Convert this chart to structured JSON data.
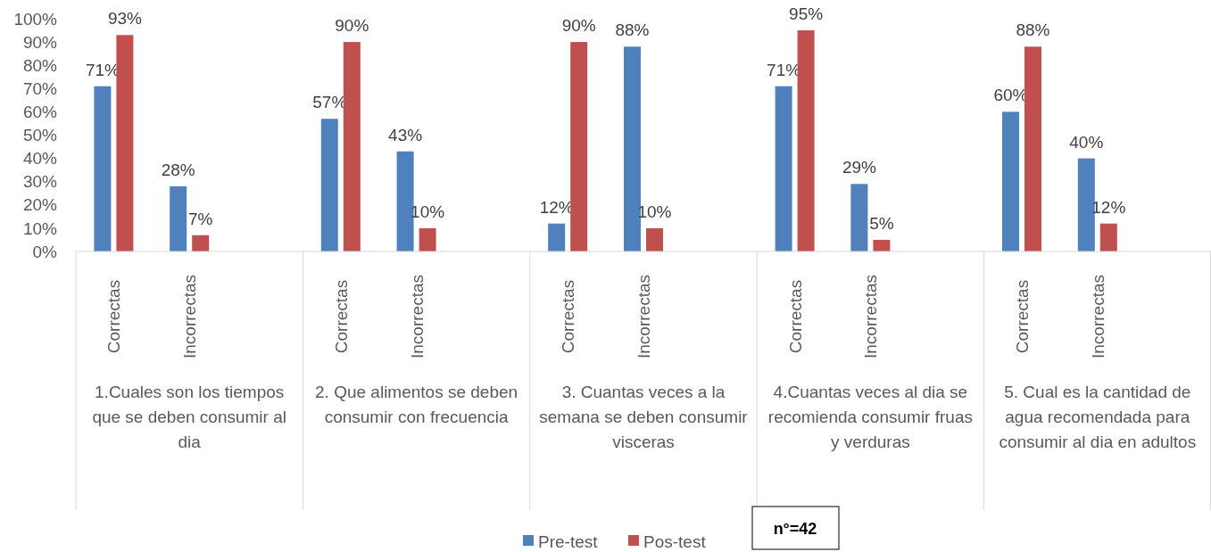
{
  "chart_data": {
    "type": "bar",
    "categories": [
      "Correctas",
      "Incorrectas",
      null,
      "Correctas",
      "Incorrectas",
      null,
      "Correctas",
      "Incorrectas",
      null,
      "Correctas",
      "Incorrectas",
      null,
      "Correctas",
      "Incorrectas",
      null
    ],
    "series": [
      {
        "name": "Pre-test",
        "color": "#4f81bd",
        "values": [
          71,
          28,
          null,
          57,
          43,
          null,
          12,
          88,
          null,
          71,
          29,
          null,
          60,
          40,
          null
        ],
        "value_labels": [
          "71%",
          "28%",
          null,
          "57%",
          "43%",
          null,
          "12%",
          "88%",
          null,
          "71%",
          "29%",
          null,
          "60%",
          "40%",
          null
        ]
      },
      {
        "name": "Pos-test",
        "color": "#c0504d",
        "values": [
          93,
          7,
          null,
          90,
          10,
          null,
          90,
          10,
          null,
          95,
          5,
          null,
          88,
          12,
          null
        ],
        "value_labels": [
          "93%",
          "7%",
          null,
          "90%",
          "10%",
          null,
          "90%",
          "10%",
          null,
          "95%",
          "5%",
          null,
          "88%",
          "12%",
          null
        ]
      }
    ],
    "ylim": [
      0,
      100
    ],
    "yticks": [
      {
        "value": 0,
        "label": "0%"
      },
      {
        "value": 10,
        "label": "10%"
      },
      {
        "value": 20,
        "label": "20%"
      },
      {
        "value": 30,
        "label": "30%"
      },
      {
        "value": 40,
        "label": "40%"
      },
      {
        "value": 50,
        "label": "50%"
      },
      {
        "value": 60,
        "label": "60%"
      },
      {
        "value": 70,
        "label": "70%"
      },
      {
        "value": 80,
        "label": "80%"
      },
      {
        "value": 90,
        "label": "90%"
      },
      {
        "value": 100,
        "label": "100%"
      }
    ],
    "annotations": [
      "1.Cuales son los tiempos que se deben consumir al dia",
      "2. Que alimentos se deben consumir con frecuencia",
      "3. Cuantas veces a la semana se deben consumir visceras",
      "4.Cuantas veces al dia se recomienda consumir fruas y verduras",
      "5. Cual es la cantidad de agua recomendada para consumir al dia en adultos",
      "n°=42"
    ],
    "legend": "bottom",
    "grid": false
  }
}
